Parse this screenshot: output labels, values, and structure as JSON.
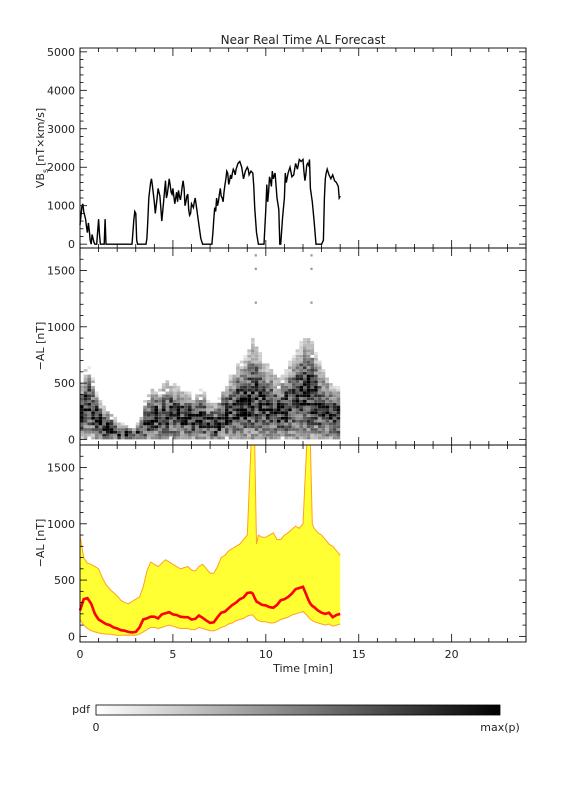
{
  "chart_data": [
    {
      "type": "line",
      "title": "Near Real Time AL Forecast",
      "ylabel": "VB",
      "ylabel_sub": "s",
      "ylabel_unit": "[nT×km/s]",
      "xlim": [
        0,
        24
      ],
      "ylim": [
        -100,
        5100
      ],
      "yticks": [
        0,
        1000,
        2000,
        3000,
        4000,
        5000
      ],
      "line_color": "#000000",
      "series": [
        {
          "x": [
            0,
            0.1,
            0.15,
            0.2,
            0.3,
            0.35,
            0.4,
            0.45,
            0.5,
            0.55,
            0.6,
            0.65,
            0.7,
            0.75,
            0.8,
            0.9,
            1.0,
            1.05,
            1.1,
            1.15,
            1.3,
            1.35,
            1.4,
            1.45,
            1.5,
            1.6,
            1.8,
            2.0,
            2.2,
            2.4,
            2.6,
            2.8,
            2.9,
            2.95,
            3.0,
            3.05,
            3.1,
            3.2,
            3.3,
            3.4,
            3.45,
            3.5,
            3.55,
            3.6,
            3.65,
            3.7,
            3.75,
            3.8,
            3.85,
            3.9,
            3.95,
            4.0,
            4.05,
            4.1,
            4.15,
            4.2,
            4.3,
            4.35,
            4.4,
            4.45,
            4.5,
            4.55,
            4.6,
            4.65,
            4.7,
            4.75,
            4.8,
            4.85,
            4.9,
            4.95,
            5.0,
            5.05,
            5.1,
            5.15,
            5.2,
            5.25,
            5.3,
            5.35,
            5.4,
            5.45,
            5.5,
            5.55,
            5.6,
            5.65,
            5.7,
            5.75,
            5.8,
            5.85,
            5.9,
            5.95,
            6.0,
            6.05,
            6.1,
            6.15,
            6.2,
            6.3,
            6.4,
            6.5,
            6.6,
            6.7,
            6.8,
            6.9,
            7.0,
            7.1,
            7.15,
            7.2,
            7.25,
            7.3,
            7.35,
            7.4,
            7.45,
            7.5,
            7.55,
            7.6,
            7.65,
            7.7,
            7.75,
            7.8,
            7.85,
            7.9,
            7.95,
            8.0,
            8.05,
            8.1,
            8.15,
            8.2,
            8.25,
            8.3,
            8.35,
            8.4,
            8.5,
            8.6,
            8.7,
            8.8,
            8.9,
            9.0,
            9.05,
            9.1,
            9.2,
            9.3,
            9.35,
            9.4,
            9.5,
            9.6,
            9.7,
            9.8,
            9.9,
            10.0,
            10.05,
            10.1,
            10.15,
            10.2,
            10.25,
            10.3,
            10.35,
            10.4,
            10.5,
            10.6,
            10.7,
            10.75,
            10.8,
            10.9,
            11.0,
            11.05,
            11.1,
            11.2,
            11.3,
            11.4,
            11.5,
            11.6,
            11.7,
            11.8,
            11.9,
            12.0,
            12.05,
            12.1,
            12.15,
            12.2,
            12.25,
            12.3,
            12.35,
            12.4,
            12.5,
            12.6,
            12.7,
            12.8,
            12.9,
            13.0,
            13.1,
            13.15,
            13.2,
            13.25,
            13.3,
            13.4,
            13.5,
            13.6,
            13.7,
            13.8,
            13.9,
            13.95,
            14.0
          ],
          "y": [
            500,
            980,
            1050,
            850,
            650,
            450,
            300,
            550,
            350,
            100,
            0,
            250,
            150,
            50,
            0,
            0,
            650,
            250,
            0,
            0,
            0,
            650,
            0,
            0,
            0,
            0,
            0,
            0,
            0,
            0,
            0,
            0,
            650,
            850,
            800,
            100,
            0,
            0,
            0,
            0,
            0,
            0,
            0,
            150,
            600,
            1200,
            1400,
            1600,
            1700,
            1500,
            1300,
            1100,
            800,
            1000,
            1200,
            1450,
            1250,
            950,
            600,
            850,
            1100,
            1400,
            1650,
            1200,
            1300,
            1500,
            1700,
            1550,
            1350,
            1300,
            1450,
            1250,
            1050,
            1200,
            1350,
            1100,
            1400,
            1250,
            1150,
            1300,
            1500,
            1650,
            1450,
            1000,
            1100,
            1250,
            1300,
            900,
            750,
            800,
            1050,
            1000,
            950,
            1100,
            1200,
            850,
            500,
            150,
            0,
            0,
            0,
            0,
            0,
            0,
            300,
            650,
            950,
            850,
            1200,
            1000,
            1100,
            1300,
            1450,
            1250,
            1200,
            1100,
            1350,
            1550,
            1700,
            1900,
            1850,
            1550,
            1650,
            1800,
            1700,
            1850,
            1950,
            1900,
            1800,
            1950,
            2100,
            2150,
            2000,
            1700,
            1900,
            2000,
            1950,
            1800,
            1900,
            1850,
            1500,
            950,
            300,
            0,
            0,
            0,
            0,
            900,
            1550,
            1100,
            1350,
            1750,
            1650,
            1500,
            1900,
            1700,
            1850,
            1200,
            900,
            0,
            0,
            700,
            1200,
            1850,
            1600,
            1850,
            2000,
            1750,
            1800,
            2100,
            1950,
            2200,
            2150,
            2200,
            1900,
            1650,
            1800,
            2050,
            2100,
            2050,
            2200,
            1450,
            1100,
            600,
            0,
            0,
            0,
            0,
            100,
            1200,
            1700,
            1850,
            1950,
            1800,
            1700,
            1800,
            1650,
            1600,
            1500,
            1200,
            1250
          ]
        }
      ]
    },
    {
      "type": "heatmap",
      "ylabel": "−AL [nT]",
      "xlim": [
        0,
        24
      ],
      "ylim": [
        -50,
        1700
      ],
      "yticks": [
        0,
        500,
        1000,
        1500
      ],
      "colormap": [
        "#ffffff",
        "#000000"
      ],
      "x": [
        0,
        0.2,
        0.4,
        0.6,
        0.8,
        1.0,
        1.2,
        1.4,
        1.6,
        1.8,
        2.0,
        2.2,
        2.4,
        2.6,
        2.8,
        3.0,
        3.2,
        3.4,
        3.6,
        3.8,
        4.0,
        4.2,
        4.4,
        4.6,
        4.8,
        5.0,
        5.2,
        5.4,
        5.6,
        5.8,
        6.0,
        6.2,
        6.4,
        6.6,
        6.8,
        7.0,
        7.2,
        7.4,
        7.6,
        7.8,
        8.0,
        8.2,
        8.4,
        8.6,
        8.8,
        9.0,
        9.2,
        9.4,
        9.6,
        9.8,
        10.0,
        10.2,
        10.4,
        10.6,
        10.8,
        11.0,
        11.2,
        11.4,
        11.6,
        11.8,
        12.0,
        12.2,
        12.4,
        12.6,
        12.8,
        13.0,
        13.2,
        13.4,
        13.6,
        13.8
      ],
      "center": [
        230,
        290,
        300,
        250,
        180,
        140,
        120,
        100,
        90,
        70,
        60,
        50,
        45,
        40,
        40,
        50,
        80,
        140,
        170,
        190,
        200,
        190,
        210,
        220,
        230,
        210,
        200,
        190,
        180,
        180,
        160,
        170,
        190,
        180,
        150,
        140,
        130,
        160,
        200,
        220,
        250,
        270,
        300,
        310,
        320,
        350,
        380,
        370,
        330,
        300,
        290,
        270,
        260,
        240,
        250,
        270,
        300,
        320,
        350,
        380,
        400,
        410,
        380,
        340,
        300,
        270,
        250,
        230,
        210,
        200
      ],
      "spread": [
        280,
        330,
        340,
        300,
        240,
        200,
        180,
        160,
        140,
        120,
        100,
        90,
        80,
        70,
        70,
        90,
        130,
        200,
        240,
        260,
        270,
        260,
        280,
        300,
        300,
        280,
        270,
        260,
        240,
        240,
        220,
        230,
        250,
        240,
        210,
        200,
        190,
        220,
        270,
        290,
        320,
        340,
        380,
        400,
        420,
        460,
        520,
        500,
        440,
        400,
        380,
        360,
        340,
        320,
        330,
        360,
        400,
        420,
        460,
        500,
        520,
        540,
        500,
        440,
        400,
        360,
        330,
        300,
        280,
        270
      ],
      "outlier_columns": [
        {
          "x": 9.4,
          "y": [
            1200,
            1500,
            1620
          ]
        },
        {
          "x": 12.4,
          "y": [
            1200,
            1500,
            1620
          ]
        }
      ]
    },
    {
      "type": "area",
      "ylabel": "−AL [nT]",
      "xlabel": "Time [min]",
      "xlim": [
        0,
        24
      ],
      "ylim": [
        -50,
        1700
      ],
      "xticks": [
        0,
        5,
        10,
        15,
        20
      ],
      "yticks": [
        0,
        500,
        1000,
        1500
      ],
      "band_fill_color": "#ffff33",
      "band_edge_color": "#ffa020",
      "median_color": "#ff0000",
      "x": [
        0,
        0.2,
        0.4,
        0.6,
        0.8,
        1.0,
        1.2,
        1.4,
        1.6,
        1.8,
        2.0,
        2.2,
        2.4,
        2.6,
        2.8,
        3.0,
        3.2,
        3.4,
        3.6,
        3.8,
        4.0,
        4.2,
        4.4,
        4.6,
        4.8,
        5.0,
        5.2,
        5.4,
        5.6,
        5.8,
        6.0,
        6.2,
        6.4,
        6.6,
        6.8,
        7.0,
        7.2,
        7.4,
        7.6,
        7.8,
        8.0,
        8.2,
        8.4,
        8.6,
        8.8,
        9.0,
        9.2,
        9.3,
        9.4,
        9.5,
        9.6,
        9.8,
        10.0,
        10.2,
        10.4,
        10.6,
        10.8,
        11.0,
        11.2,
        11.4,
        11.6,
        11.8,
        12.0,
        12.2,
        12.3,
        12.4,
        12.5,
        12.6,
        12.8,
        13.0,
        13.2,
        13.4,
        13.6,
        13.8,
        14.0
      ],
      "median": [
        230,
        330,
        340,
        290,
        200,
        150,
        130,
        110,
        100,
        80,
        70,
        55,
        50,
        40,
        35,
        40,
        80,
        150,
        160,
        175,
        175,
        160,
        195,
        205,
        215,
        195,
        190,
        175,
        170,
        170,
        150,
        155,
        185,
        165,
        140,
        120,
        125,
        170,
        210,
        220,
        250,
        280,
        300,
        330,
        345,
        385,
        390,
        380,
        340,
        310,
        300,
        280,
        275,
        260,
        255,
        280,
        320,
        330,
        350,
        380,
        420,
        430,
        440,
        360,
        320,
        290,
        270,
        260,
        230,
        210,
        200,
        210,
        170,
        190,
        200
      ],
      "upper": [
        900,
        700,
        650,
        640,
        620,
        600,
        520,
        460,
        420,
        390,
        360,
        320,
        300,
        290,
        310,
        330,
        350,
        440,
        580,
        660,
        640,
        620,
        650,
        680,
        660,
        640,
        620,
        600,
        610,
        620,
        590,
        580,
        620,
        640,
        600,
        560,
        560,
        620,
        700,
        720,
        760,
        780,
        800,
        820,
        860,
        900,
        1700,
        1700,
        1700,
        820,
        900,
        880,
        880,
        900,
        920,
        860,
        860,
        900,
        920,
        950,
        980,
        960,
        1000,
        1700,
        1700,
        1700,
        1000,
        960,
        920,
        900,
        860,
        820,
        800,
        760,
        720
      ],
      "lower": [
        150,
        100,
        70,
        50,
        40,
        30,
        25,
        20,
        20,
        15,
        10,
        10,
        10,
        10,
        10,
        10,
        20,
        40,
        60,
        80,
        80,
        70,
        80,
        90,
        100,
        90,
        80,
        70,
        70,
        70,
        60,
        60,
        80,
        70,
        60,
        50,
        50,
        60,
        80,
        90,
        110,
        120,
        140,
        150,
        160,
        180,
        190,
        190,
        170,
        150,
        140,
        130,
        130,
        120,
        120,
        130,
        150,
        160,
        170,
        190,
        200,
        210,
        220,
        190,
        170,
        150,
        140,
        130,
        120,
        110,
        100,
        110,
        90,
        100,
        110
      ]
    }
  ],
  "colorbar": {
    "label": "pdf",
    "min_label": "0",
    "max_label": "max(p)"
  }
}
